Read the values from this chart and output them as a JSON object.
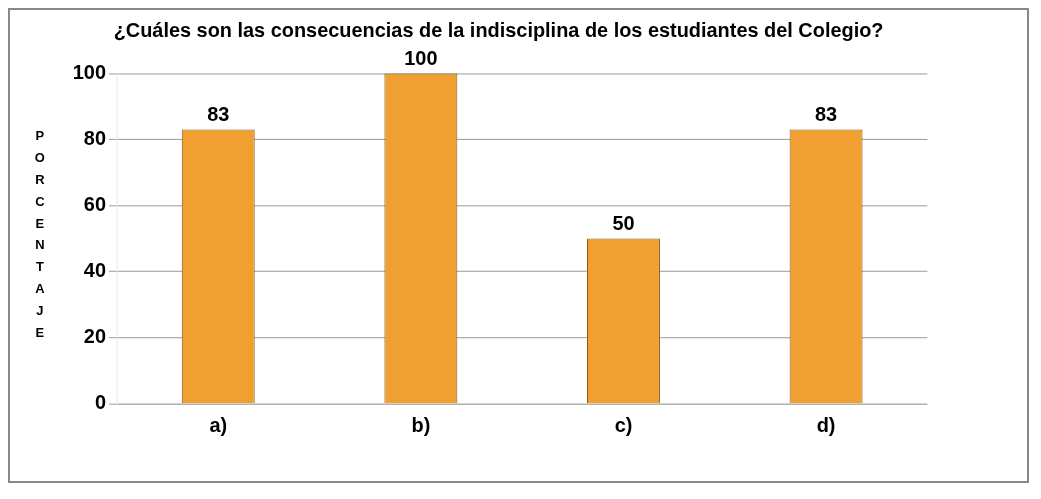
{
  "chart_data": {
    "type": "bar",
    "title": "¿Cuáles son las consecuencias de la indisciplina de los estudiantes del Colegio?",
    "ylabel": "PORCENTAJE",
    "categories": [
      "a)",
      "b)",
      "c)",
      "d)"
    ],
    "values": [
      83,
      100,
      50,
      83
    ],
    "color": "#f0a030",
    "ylim": [
      0,
      100
    ],
    "yticks": [
      0,
      20,
      40,
      60,
      80,
      100
    ],
    "grid": "y",
    "data_labels": true,
    "legend": false
  }
}
